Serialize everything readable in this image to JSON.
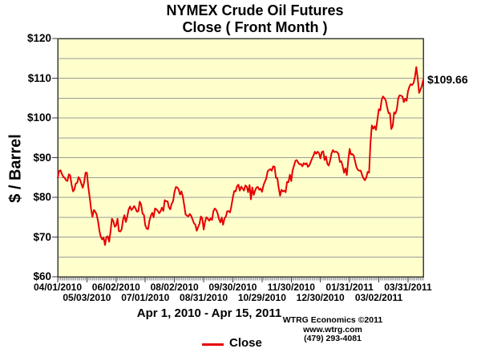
{
  "title": {
    "line1": "NYMEX Crude Oil Futures",
    "line2": "Close ( Front Month )"
  },
  "y_axis": {
    "label": "$ / Barrel",
    "ticks": [
      "$120",
      "$110",
      "$100",
      "$90",
      "$80",
      "$70",
      "$60"
    ],
    "min": 60,
    "max": 120,
    "tick_step": 10,
    "grid_step": 5
  },
  "x_axis": {
    "title": "Apr 1, 2010 - Apr 15, 2011",
    "total_days": 263,
    "minor_ticks": "one per trading day",
    "ticks": [
      {
        "day": 0,
        "label": "04/01/2010",
        "row": 1
      },
      {
        "day": 21,
        "label": "05/03/2010",
        "row": 2
      },
      {
        "day": 42,
        "label": "06/02/2010",
        "row": 1
      },
      {
        "day": 63,
        "label": "07/01/2010",
        "row": 2
      },
      {
        "day": 84,
        "label": "08/02/2010",
        "row": 1
      },
      {
        "day": 105,
        "label": "08/31/2010",
        "row": 2
      },
      {
        "day": 126,
        "label": "09/30/2010",
        "row": 1
      },
      {
        "day": 147,
        "label": "10/29/2010",
        "row": 2
      },
      {
        "day": 168,
        "label": "11/30/2010",
        "row": 1
      },
      {
        "day": 189,
        "label": "12/30/2010",
        "row": 2
      },
      {
        "day": 210,
        "label": "01/31/2011",
        "row": 1
      },
      {
        "day": 231,
        "label": "03/02/2011",
        "row": 2
      },
      {
        "day": 252,
        "label": "03/31/2011",
        "row": 1
      }
    ]
  },
  "annotation": {
    "last_price_label": "$109.66"
  },
  "legend": {
    "label": "Close",
    "position": "bottom-center"
  },
  "credit": {
    "line1": "WTRG Economics  ©2011",
    "line2": "www.wtrg.com",
    "line3": "(479) 293-4081"
  },
  "colors": {
    "line": "#e60000",
    "plot_bg": "#ffffcc",
    "grid": "#9b9b9b",
    "axis": "#3c3c3c",
    "minor_tick": "#666666"
  },
  "chart_data": {
    "type": "line",
    "title": "NYMEX Crude Oil Futures — Close ( Front Month )",
    "xlabel": "Apr 1, 2010 - Apr 15, 2011",
    "ylabel": "$ / Barrel",
    "ylim": [
      60,
      120
    ],
    "grid": "horizontal every $5",
    "legend_position": "bottom-center",
    "x_unit": "consecutive NYMEX trading days, 04/01/2010 (day 0) through 04/15/2011 (day 263)",
    "last_value_annotation": 109.66,
    "series": [
      {
        "name": "Close",
        "color": "#e60000",
        "values": [
          84.9,
          86.6,
          86.8,
          85.9,
          85.2,
          84.9,
          84.3,
          84.1,
          85.8,
          85.5,
          83.2,
          81.5,
          82.0,
          83.5,
          83.7,
          85.1,
          84.5,
          83.4,
          82.4,
          83.7,
          86.2,
          86.2,
          82.7,
          80.0,
          77.1,
          75.1,
          76.8,
          76.4,
          75.7,
          74.0,
          71.6,
          70.1,
          69.4,
          69.9,
          68.0,
          70.0,
          70.2,
          68.8,
          71.5,
          74.6,
          74.0,
          72.6,
          72.9,
          74.6,
          71.5,
          71.4,
          72.0,
          74.4,
          75.5,
          73.8,
          75.1,
          76.9,
          77.7,
          76.8,
          77.2,
          77.8,
          77.2,
          76.4,
          76.5,
          78.9,
          78.2,
          75.9,
          75.6,
          73.0,
          72.1,
          72.0,
          74.1,
          75.4,
          76.1,
          75.0,
          77.2,
          77.0,
          76.6,
          76.0,
          76.5,
          77.4,
          76.6,
          79.3,
          79.0,
          79.0,
          77.5,
          77.0,
          78.4,
          79.0,
          81.3,
          82.6,
          82.5,
          82.0,
          80.7,
          81.5,
          80.3,
          78.0,
          75.7,
          75.4,
          75.2,
          75.8,
          75.4,
          74.4,
          73.5,
          73.1,
          71.6,
          72.5,
          73.4,
          75.2,
          74.7,
          71.9,
          73.9,
          75.0,
          74.6,
          74.1,
          74.7,
          74.3,
          76.5,
          77.2,
          76.8,
          76.0,
          74.6,
          73.7,
          74.9,
          73.1,
          74.7,
          75.2,
          76.5,
          76.5,
          76.2,
          77.9,
          80.0,
          81.6,
          81.5,
          82.8,
          83.2,
          81.7,
          82.7,
          82.2,
          81.7,
          83.0,
          82.7,
          81.3,
          83.1,
          79.5,
          82.5,
          80.6,
          81.7,
          82.5,
          82.6,
          81.9,
          82.2,
          81.4,
          83.0,
          83.9,
          84.7,
          86.5,
          86.9,
          87.1,
          86.7,
          87.8,
          87.7,
          84.9,
          84.9,
          82.3,
          80.4,
          81.9,
          81.5,
          81.7,
          81.3,
          83.9,
          83.8,
          85.7,
          84.1,
          86.8,
          88.0,
          89.2,
          89.4,
          88.7,
          88.3,
          88.4,
          87.8,
          88.6,
          88.3,
          88.6,
          87.7,
          88.0,
          88.9,
          89.8,
          90.5,
          91.5,
          91.0,
          91.5,
          91.1,
          89.8,
          91.4,
          91.6,
          89.4,
          90.3,
          88.4,
          88.0,
          89.3,
          91.1,
          91.9,
          91.4,
          91.5,
          91.4,
          90.9,
          88.9,
          89.1,
          87.9,
          86.2,
          87.3,
          85.6,
          89.3,
          92.2,
          90.8,
          90.9,
          90.5,
          89.0,
          87.5,
          86.9,
          86.7,
          86.7,
          85.6,
          84.8,
          84.3,
          85.0,
          86.4,
          86.2,
          93.6,
          98.1,
          97.3,
          97.9,
          97.0,
          99.6,
          102.2,
          101.9,
          104.4,
          105.4,
          105.0,
          104.4,
          102.7,
          101.2,
          101.2,
          97.2,
          98.0,
          101.4,
          101.1,
          102.3,
          105.0,
          105.7,
          105.6,
          105.4,
          104.0,
          104.8,
          104.3,
          106.7,
          107.9,
          108.5,
          108.3,
          108.8,
          110.3,
          112.8,
          109.9,
          106.3,
          107.1,
          108.1,
          109.66
        ]
      }
    ]
  }
}
